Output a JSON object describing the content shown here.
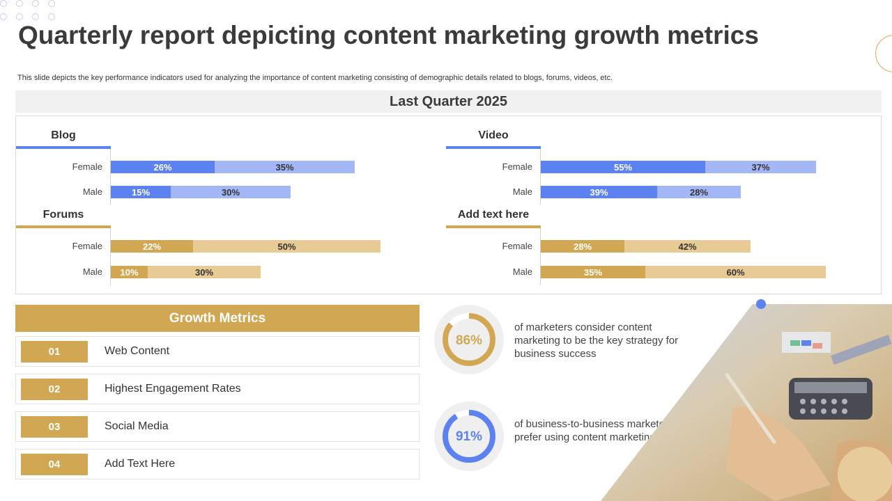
{
  "title": "Quarterly report depicting content marketing growth metrics",
  "subtitle": "This slide depicts the key performance indicators used for analyzing the importance of content marketing consisting of demographic details related to blogs, forums, videos, etc.",
  "quarter_label": "Last Quarter 2025",
  "sections": {
    "blog": {
      "title": "Blog",
      "rows": [
        {
          "label": "Female",
          "dark": "26%",
          "light": "35%"
        },
        {
          "label": "Male",
          "dark": "15%",
          "light": "30%"
        }
      ]
    },
    "video": {
      "title": "Video",
      "rows": [
        {
          "label": "Female",
          "dark": "55%",
          "light": "37%"
        },
        {
          "label": "Male",
          "dark": "39%",
          "light": "28%"
        }
      ]
    },
    "forums": {
      "title": "Forums",
      "rows": [
        {
          "label": "Female",
          "dark": "22%",
          "light": "50%"
        },
        {
          "label": "Male",
          "dark": "10%",
          "light": "30%"
        }
      ]
    },
    "other": {
      "title": "Add text here",
      "rows": [
        {
          "label": "Female",
          "dark": "28%",
          "light": "42%"
        },
        {
          "label": "Male",
          "dark": "35%",
          "light": "60%"
        }
      ]
    }
  },
  "growth_metrics": {
    "header": "Growth Metrics",
    "items": [
      {
        "num": "01",
        "text": "Web Content"
      },
      {
        "num": "02",
        "text": "Highest Engagement Rates"
      },
      {
        "num": "03",
        "text": "Social Media"
      },
      {
        "num": "04",
        "text": "Add Text Here"
      }
    ]
  },
  "stats": [
    {
      "value": "86%",
      "fraction": 0.86,
      "color": "#d2a753",
      "text": "of marketers consider content marketing to be the key strategy for business success"
    },
    {
      "value": "91%",
      "fraction": 0.91,
      "color": "#5b82f0",
      "text": "of business-to-business marketers prefer using content marketing"
    }
  ],
  "colors": {
    "blue_dark": "#5b82f0",
    "blue_light": "#a3b7f7",
    "gold_dark": "#d2a753",
    "gold_light": "#e8ca95"
  },
  "icons": {
    "photo": "business-desk-photo-icon"
  }
}
